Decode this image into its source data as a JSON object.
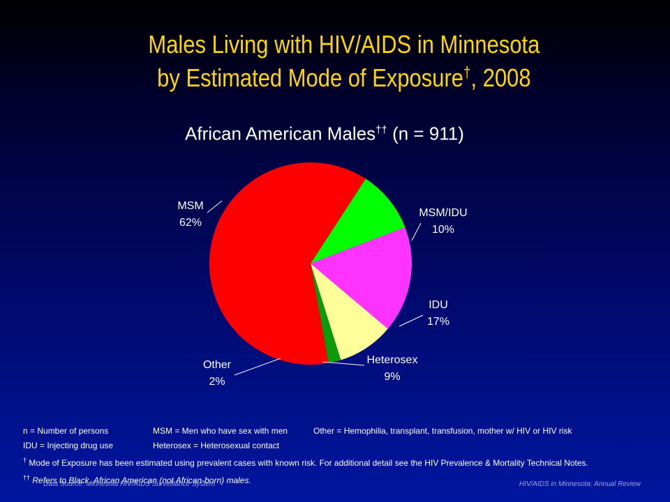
{
  "title": {
    "line1": "Males Living with HIV/AIDS in Minnesota",
    "line2_main": "by Estimated Mode of Exposure",
    "line2_mark": "†",
    "line2_end": ", 2008"
  },
  "chart_data": {
    "type": "pie",
    "title": "African American Males",
    "title_mark": "††",
    "title_suffix": "(n = 911)",
    "slices": [
      {
        "label": "MSM",
        "value": 62,
        "value_label": "62%",
        "color": "#ff0000"
      },
      {
        "label": "MSM/IDU",
        "value": 10,
        "value_label": "10%",
        "color": "#00ff00"
      },
      {
        "label": "IDU",
        "value": 17,
        "value_label": "17%",
        "color": "#ff33ff"
      },
      {
        "label": "Heterosex",
        "value": 9,
        "value_label": "9%",
        "color": "#ffff99"
      },
      {
        "label": "Other",
        "value": 2,
        "value_label": "2%",
        "color": "#0a9a0a"
      }
    ]
  },
  "notes": {
    "row1": [
      "n = Number of persons",
      "MSM = Men who have sex with men",
      "Other = Hemophilia, transplant, transfusion, mother w/ HIV or HIV risk"
    ],
    "row2": [
      "IDU = Injecting drug use",
      "Heterosex = Heterosexual contact"
    ],
    "note3_mark": "†",
    "note3": "Mode of Exposure has been estimated using prevalent cases with known risk. For additional detail see the HIV Prevalence & Mortality Technical Notes.",
    "note4_mark": "††",
    "note4": "Refers to Black, African American (not African-born) males."
  },
  "footer": {
    "source_label": "Data Source:",
    "source": "Minnesota HIV/AIDS Surveillance System",
    "right": "HIV/AIDS in Minnesota: Annual Review"
  }
}
